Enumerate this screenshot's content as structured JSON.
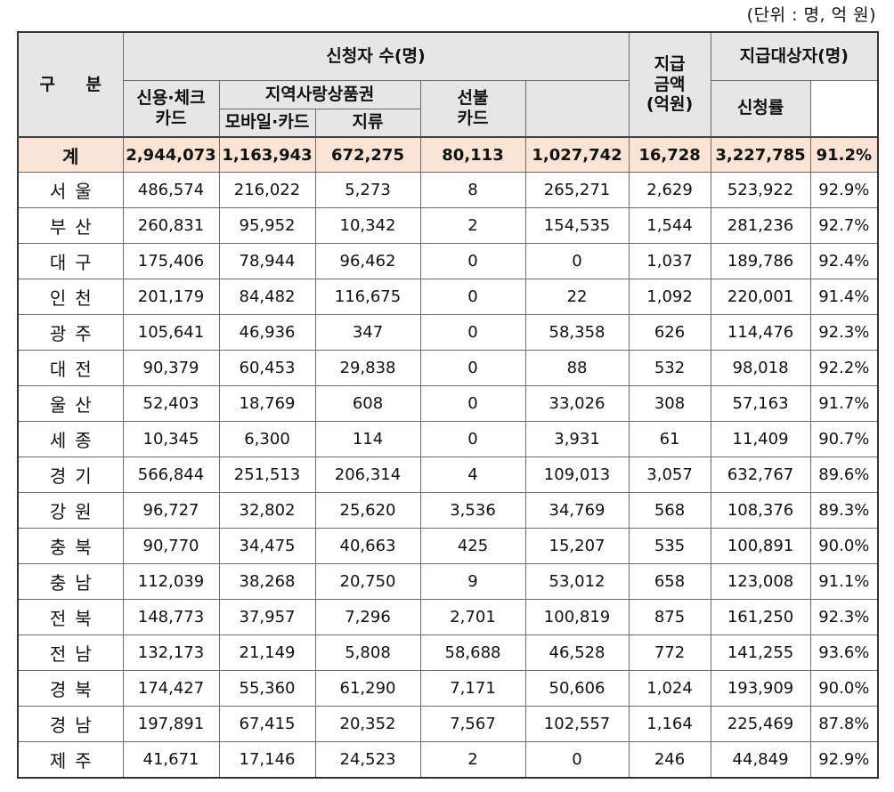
{
  "unit_note": "(단위 : 명, 억 원)",
  "header": {
    "division": "구 분",
    "applicants": "신청자 수(명)",
    "credit_check": "신용·체크\n카드",
    "local_voucher": "지역사랑상품권",
    "mobile_card": "모바일·카드",
    "paper": "지류",
    "prepaid": "선불\n카드",
    "paid_amount": "지급\n금액\n(억원)",
    "eligible": "지급대상자(명)",
    "rate": "신청률"
  },
  "total": {
    "label": "계",
    "values": [
      "2,944,073",
      "1,163,943",
      "672,275",
      "80,113",
      "1,027,742",
      "16,728",
      "3,227,785",
      "91.2%"
    ]
  },
  "rows": [
    {
      "label": "서울",
      "values": [
        "486,574",
        "216,022",
        "5,273",
        "8",
        "265,271",
        "2,629",
        "523,922",
        "92.9%"
      ]
    },
    {
      "label": "부산",
      "values": [
        "260,831",
        "95,952",
        "10,342",
        "2",
        "154,535",
        "1,544",
        "281,236",
        "92.7%"
      ]
    },
    {
      "label": "대구",
      "values": [
        "175,406",
        "78,944",
        "96,462",
        "0",
        "0",
        "1,037",
        "189,786",
        "92.4%"
      ]
    },
    {
      "label": "인천",
      "values": [
        "201,179",
        "84,482",
        "116,675",
        "0",
        "22",
        "1,092",
        "220,001",
        "91.4%"
      ]
    },
    {
      "label": "광주",
      "values": [
        "105,641",
        "46,936",
        "347",
        "0",
        "58,358",
        "626",
        "114,476",
        "92.3%"
      ]
    },
    {
      "label": "대전",
      "values": [
        "90,379",
        "60,453",
        "29,838",
        "0",
        "88",
        "532",
        "98,018",
        "92.2%"
      ]
    },
    {
      "label": "울산",
      "values": [
        "52,403",
        "18,769",
        "608",
        "0",
        "33,026",
        "308",
        "57,163",
        "91.7%"
      ]
    },
    {
      "label": "세종",
      "values": [
        "10,345",
        "6,300",
        "114",
        "0",
        "3,931",
        "61",
        "11,409",
        "90.7%"
      ]
    },
    {
      "label": "경기",
      "values": [
        "566,844",
        "251,513",
        "206,314",
        "4",
        "109,013",
        "3,057",
        "632,767",
        "89.6%"
      ]
    },
    {
      "label": "강원",
      "values": [
        "96,727",
        "32,802",
        "25,620",
        "3,536",
        "34,769",
        "568",
        "108,376",
        "89.3%"
      ]
    },
    {
      "label": "충북",
      "values": [
        "90,770",
        "34,475",
        "40,663",
        "425",
        "15,207",
        "535",
        "100,891",
        "90.0%"
      ]
    },
    {
      "label": "충남",
      "values": [
        "112,039",
        "38,268",
        "20,750",
        "9",
        "53,012",
        "658",
        "123,008",
        "91.1%"
      ]
    },
    {
      "label": "전북",
      "values": [
        "148,773",
        "37,957",
        "7,296",
        "2,701",
        "100,819",
        "875",
        "161,250",
        "92.3%"
      ]
    },
    {
      "label": "전남",
      "values": [
        "132,173",
        "21,149",
        "5,808",
        "58,688",
        "46,528",
        "772",
        "141,255",
        "93.6%"
      ]
    },
    {
      "label": "경북",
      "values": [
        "174,427",
        "55,360",
        "61,290",
        "7,171",
        "50,606",
        "1,024",
        "193,909",
        "90.0%"
      ]
    },
    {
      "label": "경남",
      "values": [
        "197,891",
        "67,415",
        "20,352",
        "7,567",
        "102,557",
        "1,164",
        "225,469",
        "87.8%"
      ]
    },
    {
      "label": "제주",
      "values": [
        "41,671",
        "17,146",
        "24,523",
        "2",
        "0",
        "246",
        "44,849",
        "92.9%"
      ]
    }
  ],
  "colors": {
    "header_bg": "#e6e6e6",
    "total_bg": "#fbe4d5",
    "border": "#6b6b6b"
  }
}
